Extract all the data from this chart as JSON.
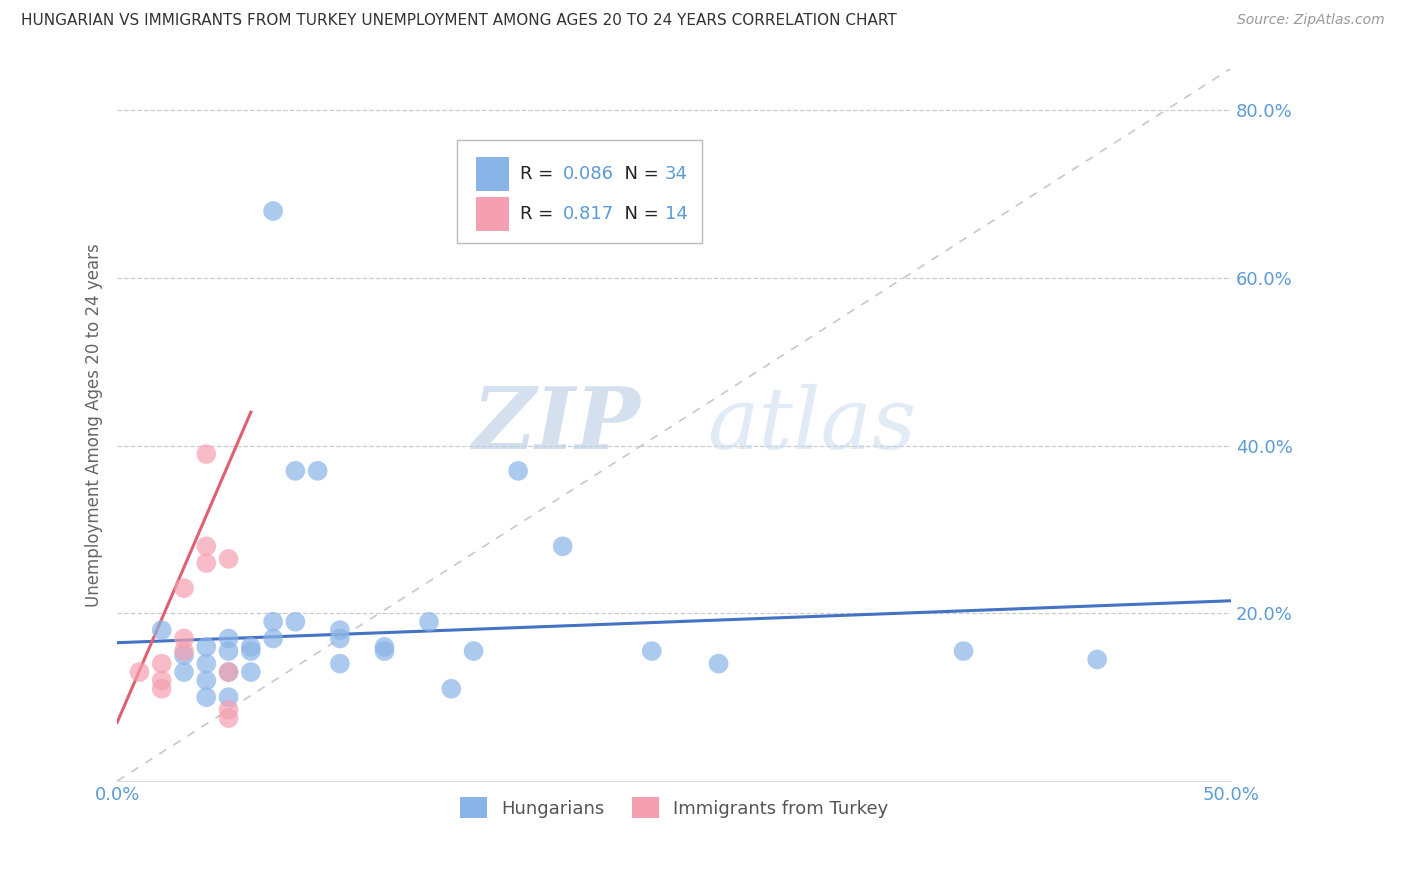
{
  "title": "HUNGARIAN VS IMMIGRANTS FROM TURKEY UNEMPLOYMENT AMONG AGES 20 TO 24 YEARS CORRELATION CHART",
  "source": "Source: ZipAtlas.com",
  "ylabel": "Unemployment Among Ages 20 to 24 years",
  "xlim": [
    0.0,
    0.5
  ],
  "ylim": [
    0.0,
    0.85
  ],
  "ytick_vals": [
    0.0,
    0.2,
    0.4,
    0.6,
    0.8
  ],
  "xtick_vals": [
    0.0,
    0.1,
    0.2,
    0.3,
    0.4,
    0.5
  ],
  "grid_color": "#cccccc",
  "bg_color": "#ffffff",
  "watermark_zip": "ZIP",
  "watermark_atlas": "atlas",
  "legend_R_hungarian": "0.086",
  "legend_N_hungarian": "34",
  "legend_R_turkey": "0.817",
  "legend_N_turkey": "14",
  "hungarian_color": "#89b4e8",
  "turkey_color": "#f4a0b0",
  "tick_color": "#5b9bd5",
  "hungarian_scatter": [
    [
      0.02,
      0.18
    ],
    [
      0.03,
      0.15
    ],
    [
      0.03,
      0.13
    ],
    [
      0.04,
      0.14
    ],
    [
      0.04,
      0.12
    ],
    [
      0.04,
      0.1
    ],
    [
      0.04,
      0.16
    ],
    [
      0.05,
      0.155
    ],
    [
      0.05,
      0.13
    ],
    [
      0.05,
      0.17
    ],
    [
      0.05,
      0.1
    ],
    [
      0.06,
      0.16
    ],
    [
      0.06,
      0.155
    ],
    [
      0.06,
      0.13
    ],
    [
      0.07,
      0.19
    ],
    [
      0.07,
      0.17
    ],
    [
      0.07,
      0.68
    ],
    [
      0.08,
      0.37
    ],
    [
      0.08,
      0.19
    ],
    [
      0.09,
      0.37
    ],
    [
      0.1,
      0.17
    ],
    [
      0.1,
      0.18
    ],
    [
      0.1,
      0.14
    ],
    [
      0.12,
      0.155
    ],
    [
      0.12,
      0.16
    ],
    [
      0.14,
      0.19
    ],
    [
      0.15,
      0.11
    ],
    [
      0.16,
      0.155
    ],
    [
      0.18,
      0.37
    ],
    [
      0.2,
      0.28
    ],
    [
      0.24,
      0.155
    ],
    [
      0.27,
      0.14
    ],
    [
      0.38,
      0.155
    ],
    [
      0.44,
      0.145
    ]
  ],
  "turkey_scatter": [
    [
      0.01,
      0.13
    ],
    [
      0.02,
      0.11
    ],
    [
      0.02,
      0.14
    ],
    [
      0.02,
      0.12
    ],
    [
      0.03,
      0.155
    ],
    [
      0.03,
      0.17
    ],
    [
      0.03,
      0.23
    ],
    [
      0.04,
      0.26
    ],
    [
      0.04,
      0.39
    ],
    [
      0.04,
      0.28
    ],
    [
      0.05,
      0.13
    ],
    [
      0.05,
      0.265
    ],
    [
      0.05,
      0.085
    ],
    [
      0.05,
      0.075
    ]
  ],
  "hungarian_trendline_x": [
    0.0,
    0.5
  ],
  "hungarian_trendline_y": [
    0.165,
    0.215
  ],
  "turkey_trendline_x": [
    0.0,
    0.06
  ],
  "turkey_trendline_y": [
    0.07,
    0.44
  ],
  "blue_trendline_color": "#4472c4",
  "pink_trendline_color": "#e06070",
  "dashed_line_color": "#c8c8c8"
}
